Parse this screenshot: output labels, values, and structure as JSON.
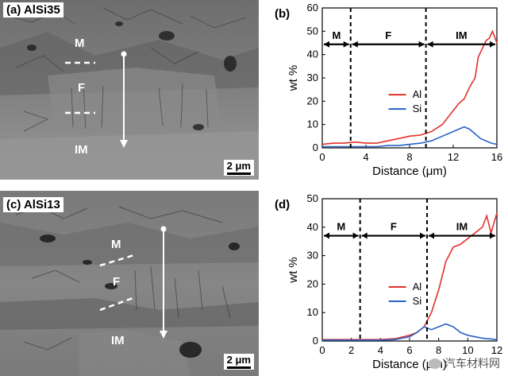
{
  "panels": {
    "a": {
      "label": "(a) AlSi35",
      "regions": {
        "m": "M",
        "f": "F",
        "im": "IM"
      },
      "scale_bar": "2 μm"
    },
    "c": {
      "label": "(c) AlSi13",
      "regions": {
        "m": "M",
        "f": "F",
        "im": "IM"
      },
      "scale_bar": "2 μm"
    }
  },
  "chart_data": [
    {
      "panel": "(b)",
      "type": "line",
      "xlabel": "Distance (μm)",
      "ylabel": "wt %",
      "xlim": [
        0,
        16
      ],
      "ylim": [
        0,
        60
      ],
      "xticks": [
        0,
        4,
        8,
        12,
        16
      ],
      "yticks": [
        0,
        10,
        20,
        30,
        40,
        50,
        60
      ],
      "boundaries": [
        2.6,
        9.5
      ],
      "zones": [
        "M",
        "F",
        "IM"
      ],
      "legend_placement": "center",
      "colors": {
        "Al": "#e2302a",
        "Si": "#2862c4"
      },
      "series": [
        {
          "name": "Al",
          "x": [
            0,
            1,
            2,
            3,
            4,
            5,
            6,
            7,
            8,
            9,
            10,
            11,
            12,
            12.5,
            13,
            13.5,
            14,
            14.3,
            14.6,
            15,
            15.3,
            15.6,
            16
          ],
          "y": [
            1.5,
            2,
            2,
            2.5,
            2,
            2,
            3,
            4,
            5,
            5.5,
            7,
            10,
            16,
            19,
            21,
            26,
            30,
            39,
            42,
            46,
            47,
            50,
            45
          ]
        },
        {
          "name": "Si",
          "x": [
            0,
            1,
            2,
            3,
            4,
            5,
            6,
            7,
            8,
            9,
            10,
            11,
            12,
            12.5,
            13,
            13.5,
            14,
            14.5,
            15,
            15.5,
            16
          ],
          "y": [
            0.5,
            0.5,
            0.5,
            0.5,
            0.5,
            0.5,
            1,
            1,
            1.5,
            2,
            3,
            5,
            7,
            8,
            9,
            8,
            6,
            4,
            3,
            2,
            1.5
          ]
        }
      ]
    },
    {
      "panel": "(d)",
      "type": "line",
      "xlabel": "Distance (μm)",
      "ylabel": "wt %",
      "xlim": [
        0,
        12
      ],
      "ylim": [
        0,
        50
      ],
      "xticks": [
        0,
        2,
        4,
        6,
        8,
        10,
        12
      ],
      "yticks": [
        0,
        10,
        20,
        30,
        40,
        50
      ],
      "boundaries": [
        2.6,
        7.2
      ],
      "zones": [
        "M",
        "F",
        "IM"
      ],
      "legend_placement": "center",
      "colors": {
        "Al": "#e2302a",
        "Si": "#2862c4"
      },
      "series": [
        {
          "name": "Al",
          "x": [
            0,
            1,
            2,
            3,
            4,
            5,
            6,
            6.5,
            7,
            7.5,
            8,
            8.5,
            9,
            9.5,
            10,
            10.5,
            11,
            11.3,
            11.6,
            12
          ],
          "y": [
            0.5,
            0.5,
            0.5,
            0.5,
            0.5,
            0.8,
            2,
            3,
            5,
            10,
            18,
            28,
            33,
            34,
            36,
            38,
            40,
            44,
            38,
            45
          ]
        },
        {
          "name": "Si",
          "x": [
            0,
            1,
            2,
            3,
            4,
            5,
            6,
            6.5,
            7,
            7.5,
            8,
            8.5,
            9,
            9.5,
            10,
            11,
            12
          ],
          "y": [
            0.3,
            0.3,
            0.3,
            0.3,
            0.3,
            0.5,
            1.5,
            3,
            5,
            4,
            5,
            6,
            5,
            3,
            2,
            1,
            0.5
          ]
        }
      ]
    }
  ],
  "watermark": "汽车材料网"
}
